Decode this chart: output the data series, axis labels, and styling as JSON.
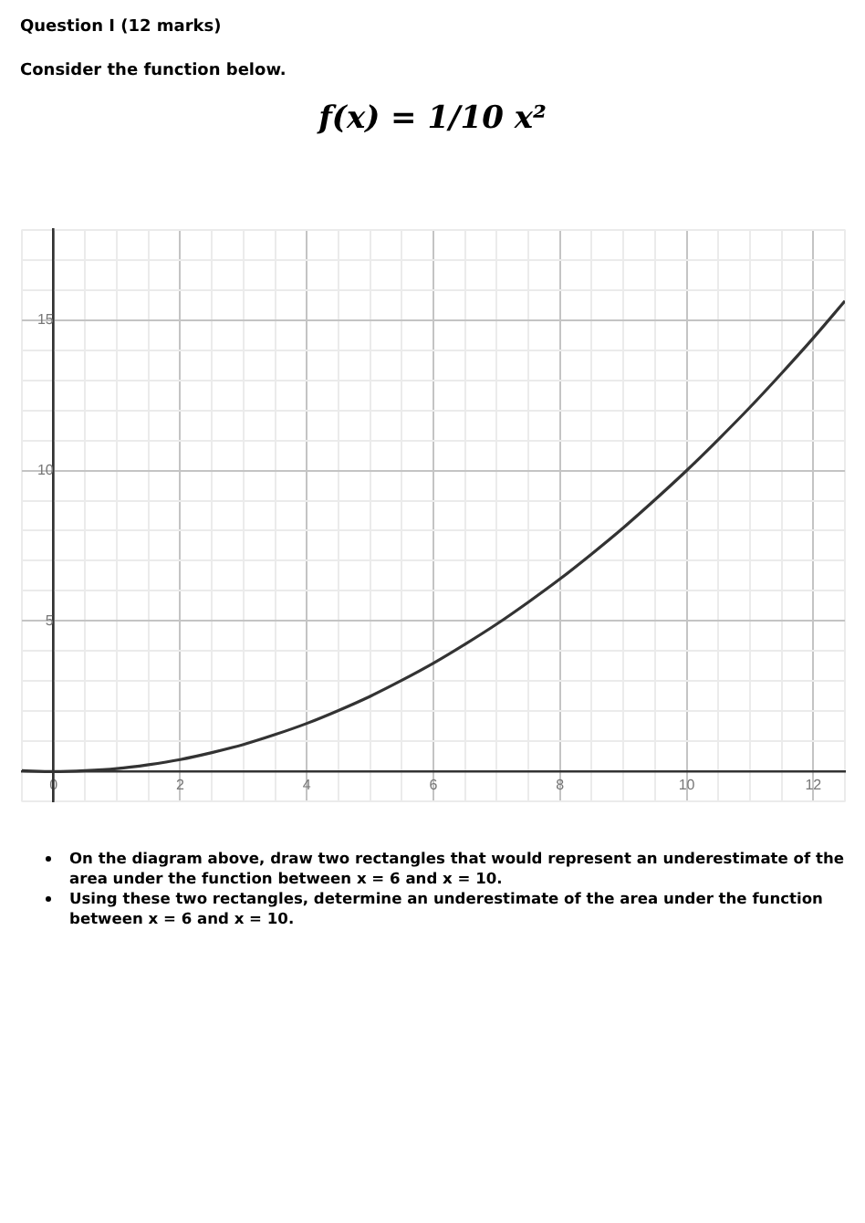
{
  "chart_data": {
    "type": "line",
    "title": "Question I (12 marks)",
    "subtitle": "Consider the function below.",
    "annotations": [
      "f(x) = 1/10 x²",
      "On the diagram above, draw two rectangles that would represent an underestimate of the area under the function between x = 6 and x = 10.",
      "Using these two rectangles, determine an underestimate of the area under the function between x = 6 and x = 10."
    ],
    "x": [
      -0.5,
      0,
      0.5,
      1,
      1.5,
      2,
      2.5,
      3,
      3.5,
      4,
      4.5,
      5,
      5.5,
      6,
      6.5,
      7,
      7.5,
      8,
      8.5,
      9,
      9.5,
      10,
      10.5,
      11,
      11.5,
      12,
      12.5
    ],
    "series": [
      {
        "color": "#333333",
        "values": [
          0.03,
          0,
          0.03,
          0.1,
          0.23,
          0.4,
          0.63,
          0.9,
          1.23,
          1.6,
          2.03,
          2.5,
          3.03,
          3.6,
          4.23,
          4.9,
          5.63,
          6.4,
          7.23,
          8.1,
          9.03,
          10,
          11.03,
          12.1,
          13.23,
          14.4,
          15.63
        ]
      }
    ],
    "xlim": [
      -0.5,
      12.5
    ],
    "ylim": [
      -1,
      18
    ],
    "xticks": [
      {
        "value": -0.5,
        "label": null
      },
      0,
      {
        "value": 0.5,
        "label": null
      },
      {
        "value": 1,
        "label": null
      },
      {
        "value": 1.5,
        "label": null
      },
      2,
      {
        "value": 2.5,
        "label": null
      },
      {
        "value": 3,
        "label": null
      },
      {
        "value": 3.5,
        "label": null
      },
      4,
      {
        "value": 4.5,
        "label": null
      },
      {
        "value": 5,
        "label": null
      },
      {
        "value": 5.5,
        "label": null
      },
      6,
      {
        "value": 6.5,
        "label": null
      },
      {
        "value": 7,
        "label": null
      },
      {
        "value": 7.5,
        "label": null
      },
      8,
      {
        "value": 8.5,
        "label": null
      },
      {
        "value": 9,
        "label": null
      },
      {
        "value": 9.5,
        "label": null
      },
      10,
      {
        "value": 10.5,
        "label": null
      },
      {
        "value": 11,
        "label": null
      },
      {
        "value": 11.5,
        "label": null
      },
      12,
      {
        "value": 12.5,
        "label": null
      }
    ],
    "yticks": [
      {
        "value": -1,
        "label": null
      },
      {
        "value": 0,
        "label": null
      },
      {
        "value": 1,
        "label": null
      },
      {
        "value": 2,
        "label": null
      },
      {
        "value": 3,
        "label": null
      },
      {
        "value": 4,
        "label": null
      },
      5,
      {
        "value": 6,
        "label": null
      },
      {
        "value": 7,
        "label": null
      },
      {
        "value": 8,
        "label": null
      },
      {
        "value": 9,
        "label": null
      },
      10,
      {
        "value": 11,
        "label": null
      },
      {
        "value": 12,
        "label": null
      },
      {
        "value": 13,
        "label": null
      },
      {
        "value": 14,
        "label": null
      },
      15,
      {
        "value": 16,
        "label": null
      },
      {
        "value": 17,
        "label": null
      },
      {
        "value": 18,
        "label": null
      }
    ],
    "grid": true,
    "legend": false,
    "marker": "none",
    "line_style": "solid"
  }
}
